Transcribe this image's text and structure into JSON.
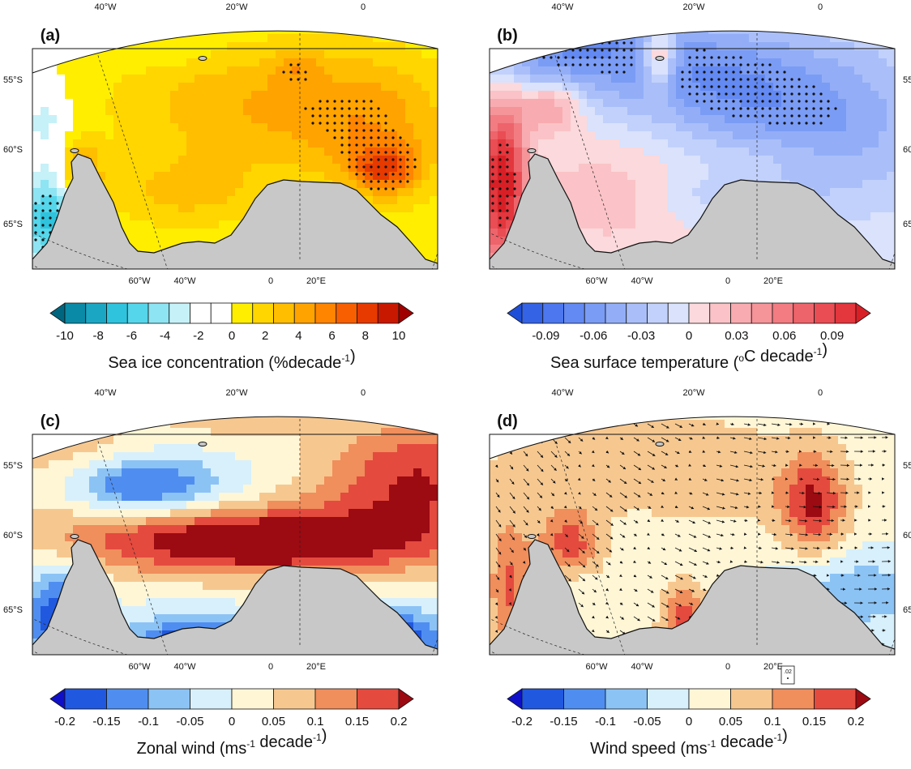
{
  "chart_data": [
    {
      "id": "a",
      "type": "heatmap",
      "panel_label": "(a)",
      "variable": "Sea ice concentration trend",
      "colorbar": {
        "label_main": "Sea ice concentration (%decade",
        "label_sup": "-1",
        "label_end": ")",
        "ticks": [
          "-10",
          "-8",
          "-6",
          "-4",
          "-2",
          "0",
          "2",
          "4",
          "6",
          "8",
          "10"
        ],
        "range": [
          -10,
          10
        ],
        "colors": [
          "#00667f",
          "#0a8aa6",
          "#1ba7c4",
          "#2fc3dd",
          "#55d6ea",
          "#8ee4f2",
          "#c6f1f8",
          "#ffffff",
          "#ffffff",
          "#ffee00",
          "#ffd600",
          "#ffbe00",
          "#ffa300",
          "#ff8500",
          "#f75f00",
          "#e63a00",
          "#c91800",
          "#a00000"
        ]
      },
      "axes": {
        "top_lon": [
          "40°W",
          "20°W",
          "0"
        ],
        "bottom_lon": [
          "60°W",
          "40°W",
          "0",
          "20°E"
        ],
        "lat": [
          "55°S",
          "60°S",
          "65°S"
        ],
        "lat_side": "left"
      },
      "patterns": {
        "yellow_band_trend": 2,
        "orange_max_trend": 6,
        "blue_peninsula_trend": -6,
        "stippling": "significant trends"
      }
    },
    {
      "id": "b",
      "type": "heatmap",
      "panel_label": "(b)",
      "variable": "Sea surface temperature trend",
      "colorbar": {
        "label_main": "Sea surface temperature (",
        "label_sup": "o",
        "label_end": "C decade",
        "label_sup2": "-1",
        "label_close": ")",
        "ticks": [
          "-0.09",
          "-0.06",
          "-0.03",
          "0",
          "0.03",
          "0.06",
          "0.09"
        ],
        "range": [
          -0.105,
          0.105
        ],
        "colors": [
          "#1f4fd8",
          "#3563e6",
          "#4c77ee",
          "#6389f2",
          "#7b9cf5",
          "#93aef7",
          "#aabff9",
          "#c2d1fb",
          "#dae2fc",
          "#fbd9dc",
          "#fbc3c7",
          "#f8abb0",
          "#f59499",
          "#f27c82",
          "#ee646b",
          "#ea4d54",
          "#e3363d",
          "#d91f26"
        ]
      },
      "axes": {
        "top_lon": [
          "40°W",
          "20°W",
          "0"
        ],
        "bottom_lon": [
          "60°W",
          "40°W",
          "0",
          "20°E"
        ],
        "lat": [
          "55°S",
          "60°S",
          "65°S"
        ],
        "lat_side": "right"
      },
      "patterns": {
        "east_cooling_trend": -0.06,
        "peninsula_warming_trend": 0.09,
        "stippling": "significant trends"
      }
    },
    {
      "id": "c",
      "type": "heatmap",
      "panel_label": "(c)",
      "variable": "Zonal wind trend",
      "colorbar": {
        "label_main": "Zonal wind (ms",
        "label_sup": "-1",
        "label_end": " decade",
        "label_sup2": "-1",
        "label_close": ")",
        "ticks": [
          "-0.2",
          "-0.15",
          "-0.1",
          "-0.05",
          "0",
          "0.05",
          "0.1",
          "0.15",
          "0.2"
        ],
        "range": [
          -0.2,
          0.2
        ],
        "colors": [
          "#1010c8",
          "#2058e0",
          "#4f8ef0",
          "#8cc3f5",
          "#d7f0fb",
          "#fff6d6",
          "#f6c890",
          "#f08e5c",
          "#e44a3e",
          "#9c0a12"
        ]
      },
      "axes": {
        "top_lon": [
          "40°W",
          "20°W",
          "0"
        ],
        "bottom_lon": [
          "60°W",
          "40°W",
          "0",
          "20°E"
        ],
        "lat": [
          "55°S",
          "60°S",
          "65°S"
        ],
        "lat_side": "left"
      },
      "patterns": {
        "max_positive": 0.2,
        "min_negative": -0.15,
        "stippling": "significant trends"
      }
    },
    {
      "id": "d",
      "type": "heatmap",
      "panel_label": "(d)",
      "variable": "Wind speed trend with wind vectors",
      "colorbar": {
        "label_main": "Wind speed (ms",
        "label_sup": "-1",
        "label_end": " decade",
        "label_sup2": "-1",
        "label_close": ")",
        "ticks": [
          "-0.2",
          "-0.15",
          "-0.1",
          "-0.05",
          "0",
          "0.05",
          "0.1",
          "0.15",
          "0.2"
        ],
        "range": [
          -0.2,
          0.2
        ],
        "colors": [
          "#1010c8",
          "#2058e0",
          "#4f8ef0",
          "#8cc3f5",
          "#d7f0fb",
          "#fff6d6",
          "#f6c890",
          "#f08e5c",
          "#e44a3e",
          "#9c0a12"
        ]
      },
      "axes": {
        "top_lon": [
          "40°W",
          "20°W",
          "0"
        ],
        "bottom_lon": [
          "60°W",
          "40°W",
          "0",
          "20°E"
        ],
        "lat": [
          "55°S",
          "60°S",
          "65°S"
        ],
        "lat_side": "right"
      },
      "reference_vector": {
        "label": ".02"
      },
      "patterns": {
        "max_positive": 0.15,
        "min_negative": -0.1,
        "vectors": "wind trend arrows"
      }
    }
  ]
}
